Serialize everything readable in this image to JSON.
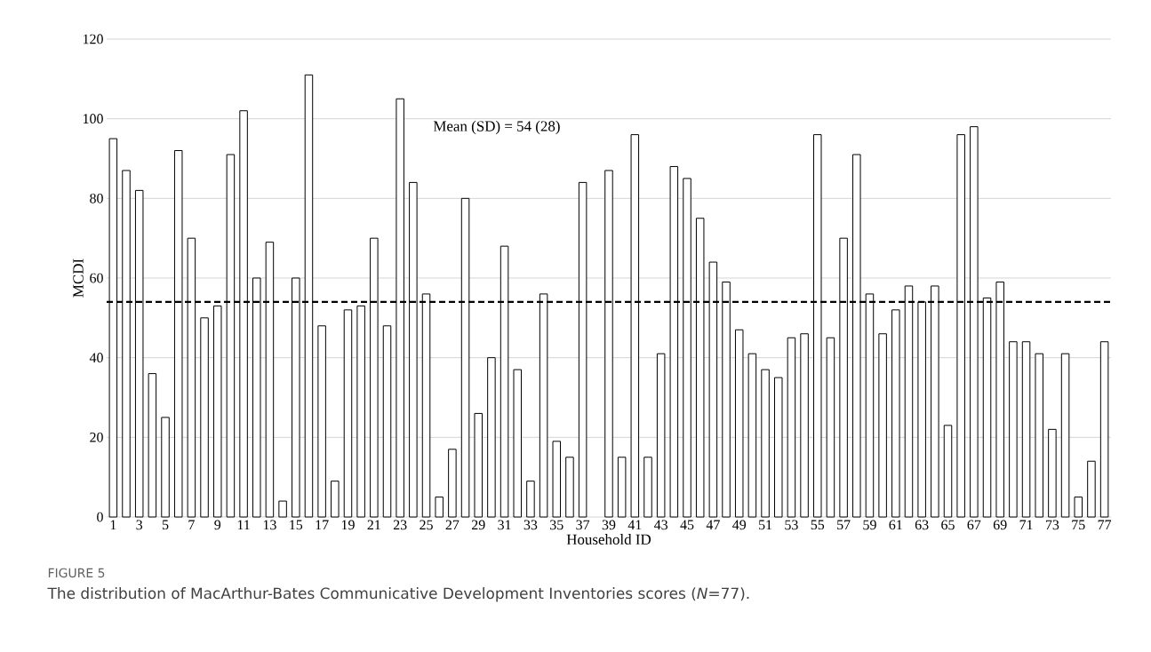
{
  "chart_data": {
    "type": "bar",
    "categories": [
      "1",
      null,
      "3",
      null,
      "5",
      null,
      "7",
      null,
      "9",
      null,
      "11",
      null,
      "13",
      null,
      "15",
      null,
      "17",
      null,
      "19",
      null,
      "21",
      null,
      "23",
      null,
      "25",
      null,
      "27",
      null,
      "29",
      null,
      "31",
      null,
      "33",
      null,
      "35",
      null,
      "37",
      null,
      "39",
      null,
      "41",
      null,
      "43",
      null,
      "45",
      null,
      "47",
      null,
      "49",
      null,
      "51",
      null,
      "53",
      null,
      "55",
      null,
      "57",
      null,
      "59",
      null,
      "61",
      null,
      "63",
      null,
      "65",
      null,
      "67",
      null,
      "69",
      null,
      "71",
      null,
      "73",
      null,
      "75",
      null,
      "77"
    ],
    "values": [
      95,
      87,
      82,
      36,
      25,
      92,
      70,
      50,
      53,
      91,
      102,
      60,
      69,
      4,
      60,
      111,
      48,
      9,
      52,
      53,
      70,
      48,
      105,
      84,
      56,
      5,
      17,
      80,
      26,
      40,
      68,
      37,
      9,
      56,
      19,
      15,
      84,
      null,
      87,
      15,
      96,
      15,
      41,
      88,
      85,
      75,
      64,
      59,
      47,
      41,
      37,
      35,
      45,
      46,
      96,
      45,
      70,
      91,
      56,
      46,
      52,
      58,
      54,
      58,
      23,
      96,
      98,
      55,
      59,
      44,
      44,
      41,
      22,
      41,
      5,
      14,
      44
    ],
    "color": "#ffffff",
    "xlabel": "Household ID",
    "ylabel": "MCDI",
    "ylim": [
      0,
      120
    ],
    "yticks": [
      0,
      20,
      40,
      60,
      80,
      100,
      120
    ],
    "grid": "y",
    "ref_lines": [
      {
        "axis": "y",
        "value": 54,
        "label": "Mean (SD) = 54 (28)",
        "color": "#000000",
        "line_style": "dashed"
      }
    ],
    "annotations": [
      "FIGURE 5",
      "The distribution of MacArthur-Bates Communicative Development Inventories scores (*N*=77)."
    ]
  }
}
